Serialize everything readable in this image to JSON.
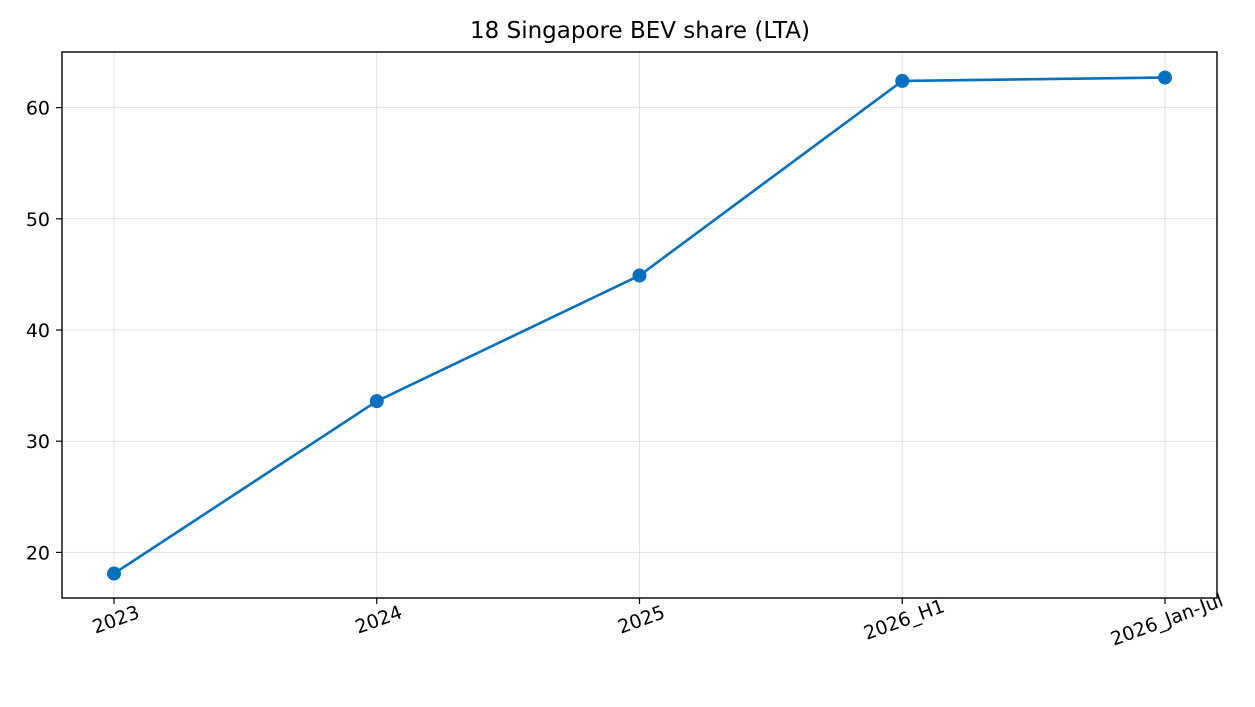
{
  "chart_data": {
    "type": "line",
    "title": "18 Singapore BEV share (LTA)",
    "xlabel": "",
    "ylabel": "",
    "categories": [
      "2023",
      "2024",
      "2025",
      "2026_H1",
      "2026_Jan-Jul"
    ],
    "series": [
      {
        "values": [
          18.1,
          33.6,
          44.9,
          62.4,
          62.7
        ],
        "color": "#0570c0",
        "marker": "circle"
      }
    ],
    "ylim": [
      15.9,
      65.0
    ],
    "yticks": [
      20,
      30,
      40,
      50,
      60
    ],
    "x_tick_rotation_deg": -20,
    "grid": true,
    "legend": "none"
  }
}
